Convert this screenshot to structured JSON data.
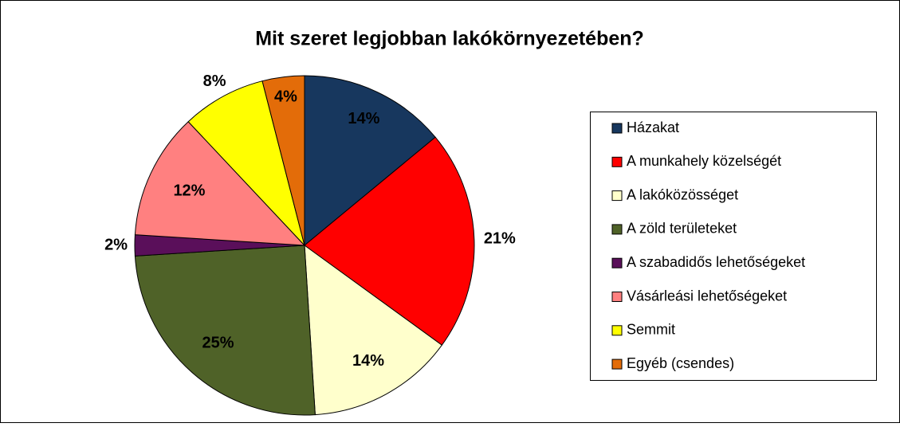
{
  "chart_data": {
    "type": "pie",
    "title": "Mit szeret legjobban lakókörnyezetében?",
    "categories": [
      "Házakat",
      "A munkahely közelségét",
      "A lakóközösséget",
      "A zöld területeket",
      "A szabadidős lehetőségeket",
      "Vásárleási lehetőségeket",
      "Semmit",
      "Egyéb (csendes)"
    ],
    "values": [
      14,
      21,
      14,
      25,
      2,
      12,
      8,
      4
    ],
    "value_labels": [
      "14%",
      "21%",
      "14%",
      "25%",
      "2%",
      "12%",
      "8%",
      "4%"
    ],
    "colors": [
      "#17375e",
      "#ff0000",
      "#ffffcc",
      "#4f6228",
      "#5a0f5a",
      "#ff8080",
      "#ffff00",
      "#e36c09"
    ],
    "legend": "right"
  }
}
